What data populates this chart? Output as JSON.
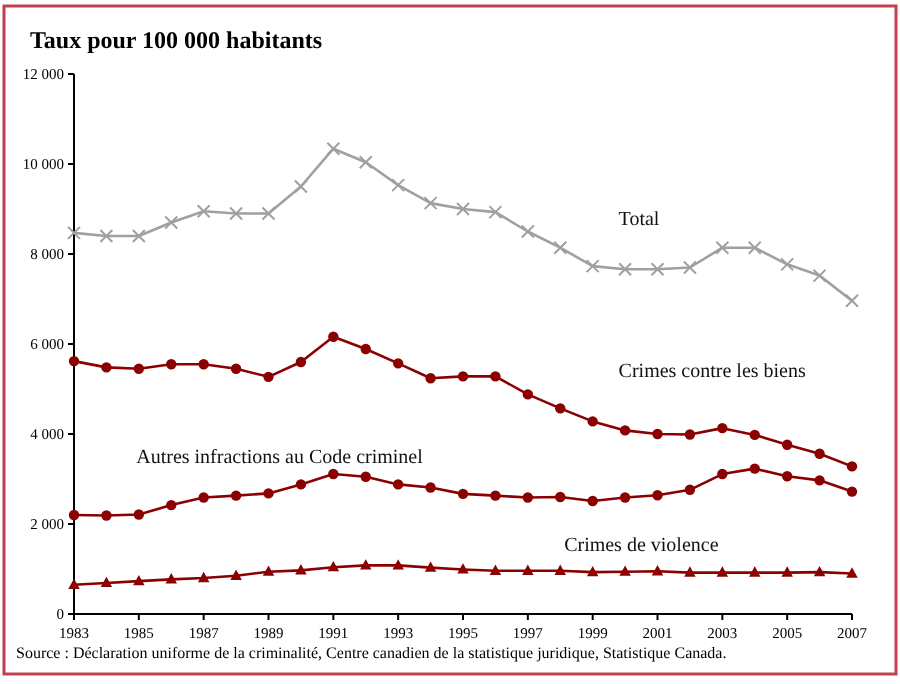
{
  "chart_data": {
    "type": "line",
    "ylabel": "Taux pour 100 000 habitants",
    "x": [
      1983,
      1984,
      1985,
      1986,
      1987,
      1988,
      1989,
      1990,
      1991,
      1992,
      1993,
      1994,
      1995,
      1996,
      1997,
      1998,
      1999,
      2000,
      2001,
      2002,
      2003,
      2004,
      2005,
      2006,
      2007
    ],
    "xlim": [
      1983,
      2007
    ],
    "xticks": [
      1983,
      1985,
      1987,
      1989,
      1991,
      1993,
      1995,
      1997,
      1999,
      2001,
      2003,
      2005,
      2007
    ],
    "ylim": [
      0,
      12000
    ],
    "yticks": [
      0,
      {
        "value": 2000,
        "label": "2 000"
      },
      {
        "value": 4000,
        "label": "4 000"
      },
      {
        "value": 6000,
        "label": "6 000"
      },
      {
        "value": 8000,
        "label": "8 000"
      },
      {
        "value": 10000,
        "label": "10 000"
      },
      {
        "value": 12000,
        "label": "12 000"
      }
    ],
    "line_style": "solid",
    "series": [
      {
        "name": "Total",
        "color": "#a0a0a0",
        "marker": "cross",
        "values": [
          8470,
          8400,
          8400,
          8700,
          8950,
          8900,
          8900,
          9500,
          10340,
          10040,
          9530,
          9130,
          9000,
          8930,
          8500,
          8140,
          7730,
          7660,
          7660,
          7700,
          8140,
          8140,
          7770,
          7520,
          6960
        ]
      },
      {
        "name": "Crimes contre les biens",
        "color": "#8b0000",
        "marker": "circle",
        "values": [
          5620,
          5480,
          5450,
          5550,
          5550,
          5450,
          5270,
          5600,
          6160,
          5890,
          5570,
          5240,
          5280,
          5280,
          4880,
          4570,
          4280,
          4080,
          4000,
          3990,
          4130,
          3980,
          3760,
          3560,
          3280
        ]
      },
      {
        "name": "Autres infractions au Code criminel",
        "color": "#8b0000",
        "marker": "circle",
        "values": [
          2200,
          2190,
          2210,
          2420,
          2590,
          2630,
          2680,
          2880,
          3110,
          3050,
          2880,
          2810,
          2670,
          2630,
          2590,
          2600,
          2510,
          2590,
          2640,
          2760,
          3110,
          3230,
          3060,
          2970,
          2720
        ]
      },
      {
        "name": "Crimes de violence",
        "color": "#8b0000",
        "marker": "triangle",
        "values": [
          650,
          690,
          730,
          770,
          800,
          850,
          940,
          970,
          1040,
          1080,
          1080,
          1030,
          990,
          960,
          960,
          960,
          930,
          940,
          950,
          920,
          920,
          920,
          920,
          930,
          900
        ]
      }
    ],
    "annotations": [
      "Source : Déclaration uniforme de la criminalité, Centre canadien de la statistique juridique, Statistique Canada."
    ]
  }
}
